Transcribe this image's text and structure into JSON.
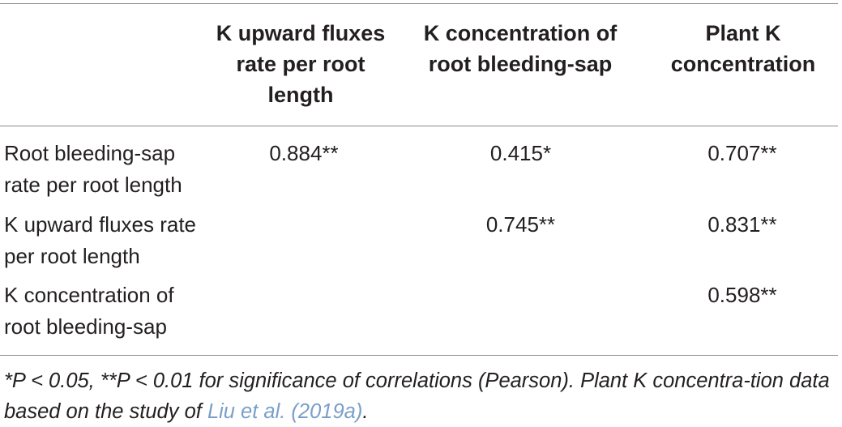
{
  "table": {
    "headers": [
      "",
      "K upward fluxes rate per root length",
      "K concentration of root bleeding-sap",
      "Plant K concentration"
    ],
    "rows": [
      {
        "label": "Root bleeding-sap rate per root length",
        "values": [
          "0.884**",
          "0.415*",
          "0.707**"
        ]
      },
      {
        "label": "K upward fluxes rate per root length",
        "values": [
          "",
          "0.745**",
          "0.831**"
        ]
      },
      {
        "label": "K concentration of root bleeding-sap",
        "values": [
          "",
          "",
          "0.598**"
        ]
      }
    ]
  },
  "footnote": {
    "text": "*P < 0.05, **P < 0.01 for significance of correlations (Pearson). Plant K concentra-tion data based on the study of",
    "link_text": "Liu et al. (2019a)",
    "end": ".",
    "link_color": "#7a9fc8"
  }
}
